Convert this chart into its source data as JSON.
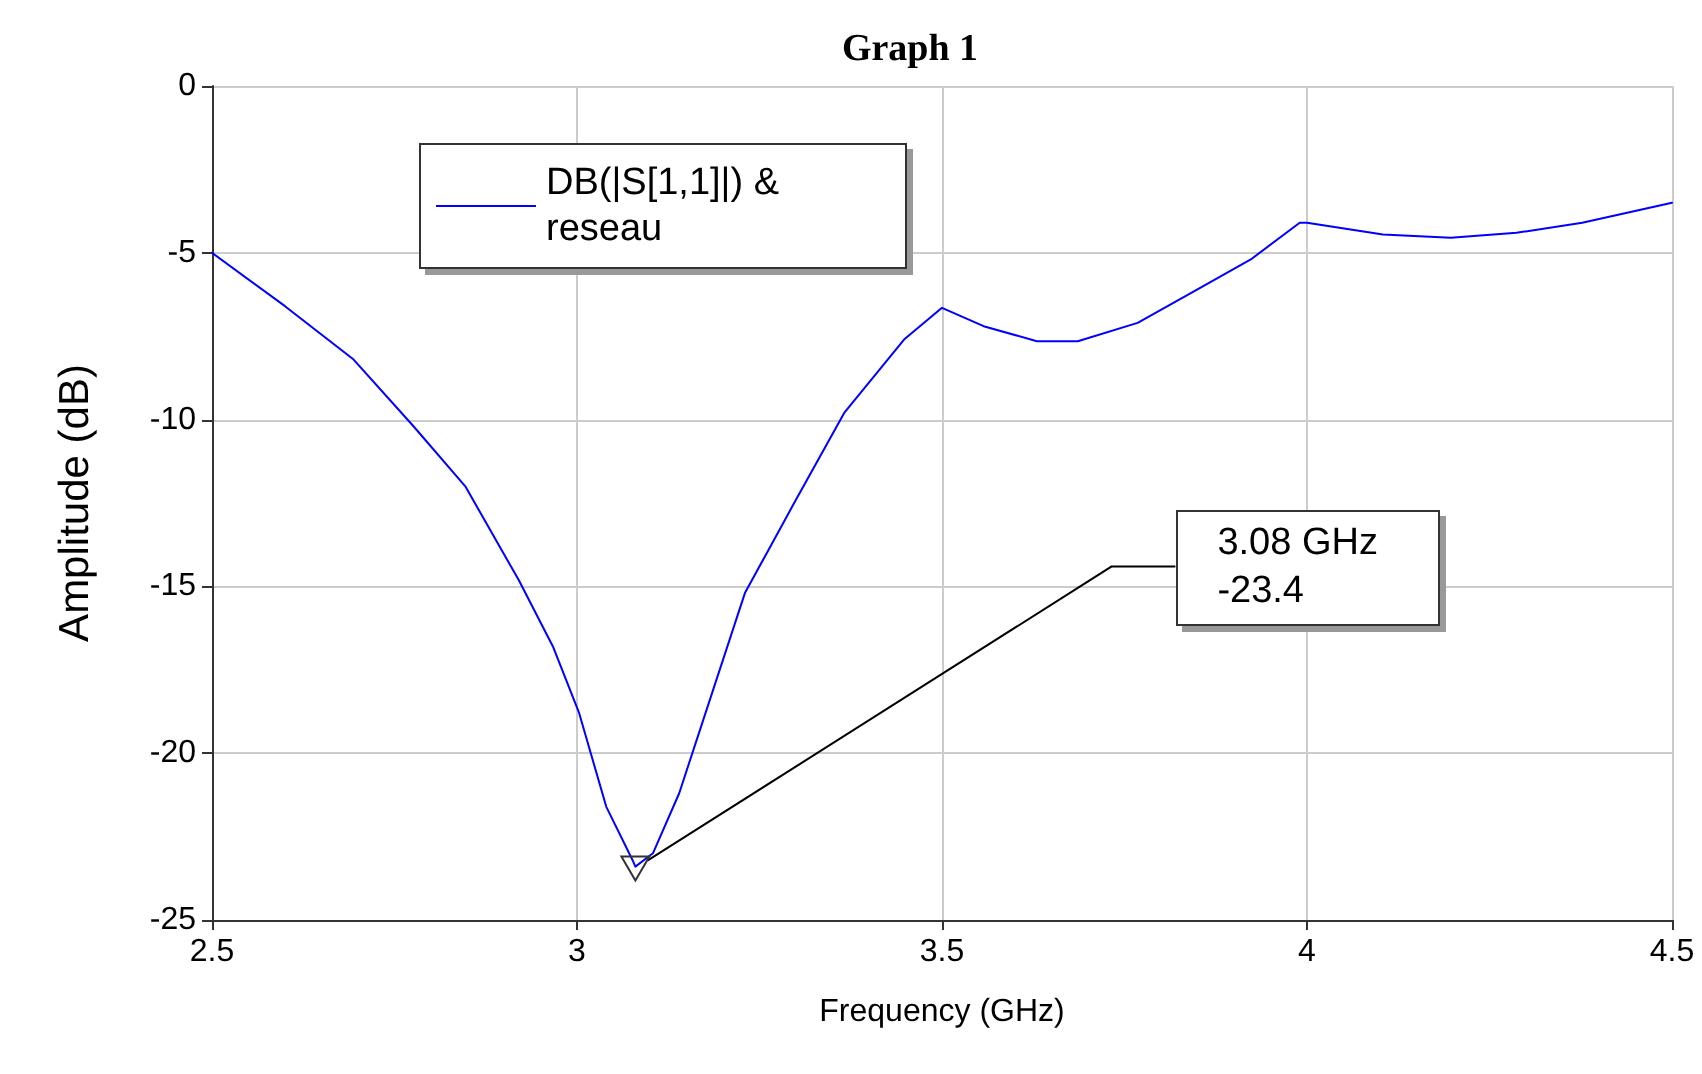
{
  "chart_data": {
    "type": "line",
    "title": "Graph 1",
    "xlabel": "Frequency (GHz)",
    "ylabel": "Amplitude (dB)",
    "xlim": [
      2.5,
      4.5
    ],
    "xticks": [
      2.5,
      3,
      3.5,
      4,
      4.5
    ],
    "ylim": [
      -25,
      0
    ],
    "yticks": [
      -25,
      -20,
      -15,
      -10,
      -5,
      0
    ],
    "grid": true,
    "legend": "top left",
    "marker": "none",
    "line_style": "solid",
    "series": [
      {
        "name": "DB(|S[1,1]|) & reseau",
        "color": "#0000ff",
        "x": [
          2.5,
          2.6,
          2.694,
          2.776,
          2.847,
          2.92,
          2.967,
          3.003,
          3.04,
          3.076,
          3.08,
          3.104,
          3.14,
          3.185,
          3.23,
          3.295,
          3.366,
          3.448,
          3.5,
          3.557,
          3.63,
          3.686,
          3.768,
          3.85,
          3.923,
          3.99,
          4.0,
          4.104,
          4.197,
          4.287,
          4.377,
          4.5
        ],
        "values": [
          -5.0,
          -6.6,
          -8.2,
          -10.2,
          -12.0,
          -14.8,
          -16.8,
          -18.8,
          -21.6,
          -23.2,
          -23.4,
          -23.0,
          -21.2,
          -18.2,
          -15.2,
          -12.6,
          -9.8,
          -7.6,
          -6.65,
          -7.2,
          -7.65,
          -7.65,
          -7.1,
          -6.1,
          -5.2,
          -4.1,
          -4.1,
          -4.45,
          -4.55,
          -4.4,
          -4.1,
          -3.5
        ]
      }
    ],
    "annotations": [
      {
        "text": "3.08 GHz\n-23.4",
        "x": 3.08,
        "y": -23.4
      }
    ]
  }
}
